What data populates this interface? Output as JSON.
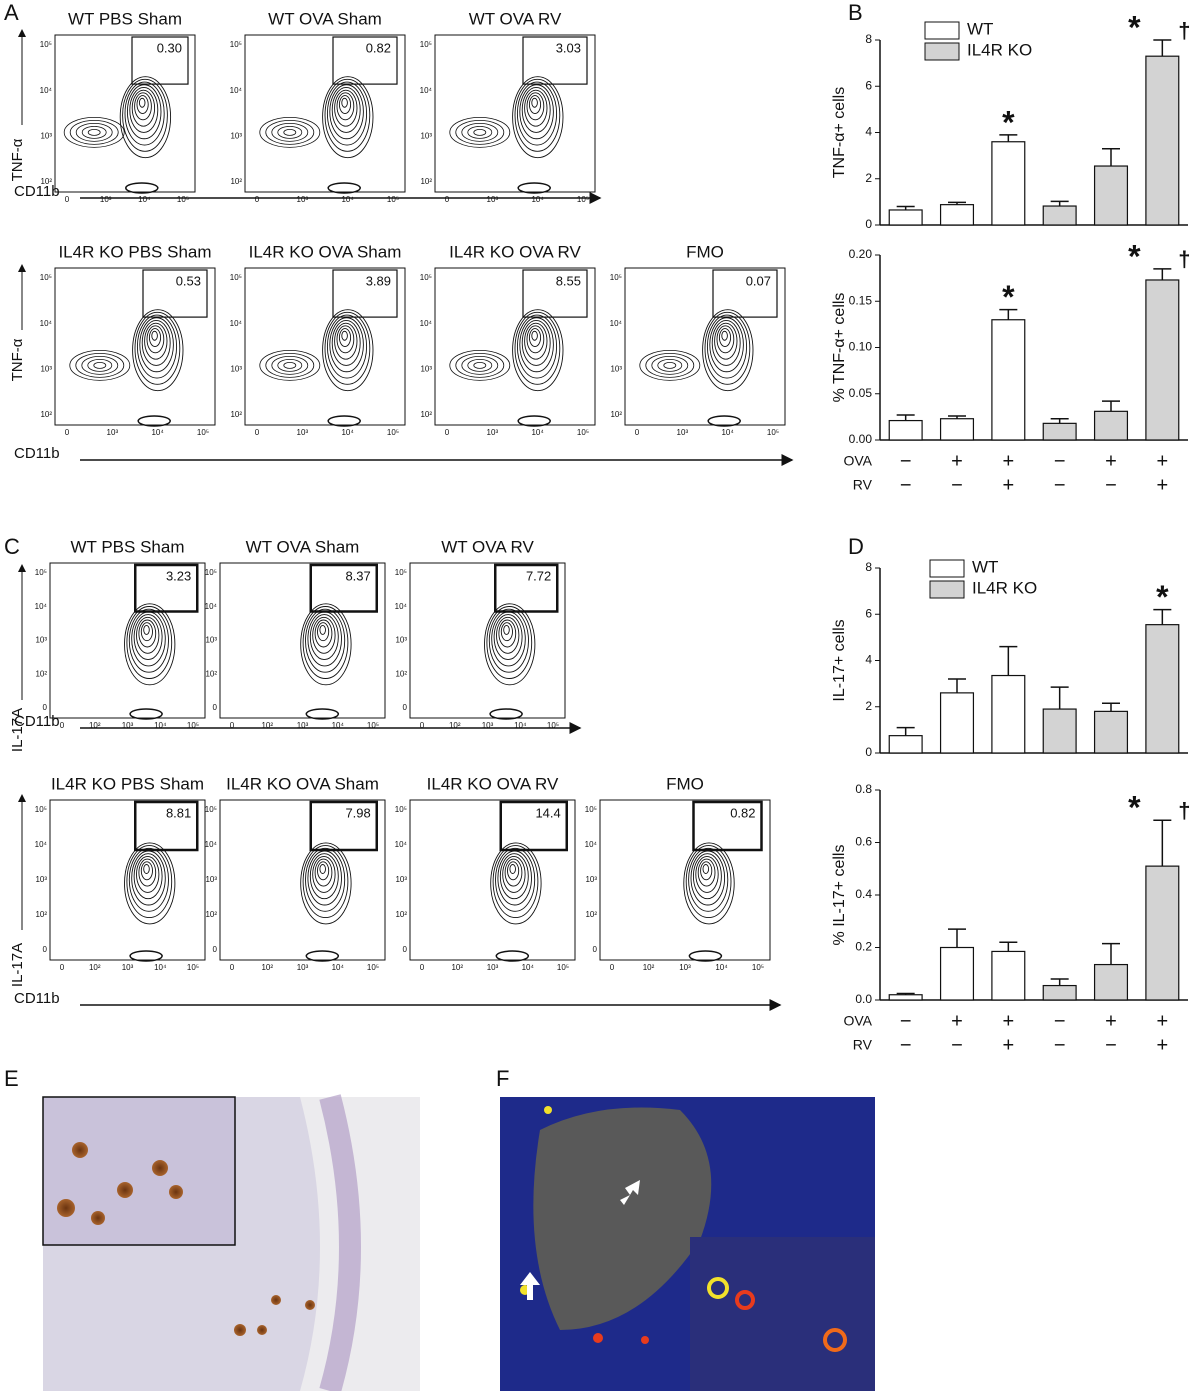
{
  "panel_labels": [
    "A",
    "B",
    "C",
    "D",
    "E",
    "F"
  ],
  "flow_a": {
    "y_label": "TNF-α",
    "x_label": "CD11b",
    "y_ticks": [
      "10⁵",
      "10⁴",
      "10³",
      "10²"
    ],
    "x_ticks": [
      "0",
      "10³",
      "10⁴",
      "10⁵"
    ],
    "plots": [
      {
        "title": "WT PBS Sham",
        "gate": "0.30"
      },
      {
        "title": "WT OVA Sham",
        "gate": "0.82"
      },
      {
        "title": "WT OVA RV",
        "gate": "3.03"
      },
      {
        "title": "IL4R KO PBS Sham",
        "gate": "0.53"
      },
      {
        "title": "IL4R KO OVA Sham",
        "gate": "3.89"
      },
      {
        "title": "IL4R KO OVA RV",
        "gate": "8.55"
      },
      {
        "title": "FMO",
        "gate": "0.07"
      }
    ]
  },
  "flow_c": {
    "y_label": "IL-17A",
    "x_label": "CD11b",
    "y_ticks": [
      "10⁵",
      "10⁴",
      "10³",
      "10²",
      "0"
    ],
    "x_ticks": [
      "0",
      "10²",
      "10³",
      "10⁴",
      "10⁵"
    ],
    "plots": [
      {
        "title": "WT PBS Sham",
        "gate": "3.23"
      },
      {
        "title": "WT OVA Sham",
        "gate": "8.37"
      },
      {
        "title": "WT OVA RV",
        "gate": "7.72"
      },
      {
        "title": "IL4R KO PBS Sham",
        "gate": "8.81"
      },
      {
        "title": "IL4R KO OVA Sham",
        "gate": "7.98"
      },
      {
        "title": "IL4R KO OVA RV",
        "gate": "14.4"
      },
      {
        "title": "FMO",
        "gate": "0.82"
      }
    ]
  },
  "chart_data": [
    {
      "type": "bar",
      "ylabel": "TNF-α+ cells",
      "ylim": [
        0,
        8
      ],
      "yticks": [
        0,
        2,
        4,
        6,
        8
      ],
      "series": [
        {
          "name": "WT",
          "color": "#ffffff",
          "values": [
            0.65,
            0.88,
            3.6,
            null,
            null,
            null
          ],
          "errors": [
            0.15,
            0.1,
            0.3,
            null,
            null,
            null
          ]
        },
        {
          "name": "IL4R KO",
          "color": "#d3d3d3",
          "values": [
            null,
            null,
            null,
            0.82,
            2.55,
            7.3
          ],
          "errors": [
            null,
            null,
            null,
            0.2,
            0.75,
            0.7
          ]
        }
      ],
      "annotations": [
        {
          "index": 2,
          "text": "*"
        },
        {
          "index": 5,
          "text": "*"
        },
        {
          "index": 5,
          "text": "†"
        }
      ]
    },
    {
      "type": "bar",
      "ylabel": "% TNF-α+ cells",
      "ylim": [
        0,
        0.2
      ],
      "yticks": [
        {
          "value": 0,
          "label": "0.00"
        },
        {
          "value": 0.05,
          "label": "0.05"
        },
        {
          "value": 0.1,
          "label": "0.10"
        },
        {
          "value": 0.15,
          "label": "0.15"
        },
        {
          "value": 0.2,
          "label": "0.20"
        }
      ],
      "series": [
        {
          "color": "#ffffff",
          "values": [
            0.021,
            0.023,
            0.13,
            null,
            null,
            null
          ],
          "errors": [
            0.006,
            0.003,
            0.011,
            null,
            null,
            null
          ]
        },
        {
          "color": "#d3d3d3",
          "values": [
            null,
            null,
            null,
            0.018,
            0.031,
            0.173
          ],
          "errors": [
            null,
            null,
            null,
            0.005,
            0.011,
            0.012
          ]
        }
      ],
      "annotations": [
        {
          "index": 2,
          "text": "*"
        },
        {
          "index": 5,
          "text": "*"
        },
        {
          "index": 5,
          "text": "†"
        }
      ],
      "conditions": [
        {
          "label": "OVA",
          "signs": [
            "−",
            "+",
            "+",
            "−",
            "+",
            "+"
          ]
        },
        {
          "label": "RV",
          "signs": [
            "−",
            "−",
            "+",
            "−",
            "−",
            "+"
          ]
        }
      ]
    },
    {
      "type": "bar",
      "ylabel": "IL-17+ cells",
      "ylim": [
        0,
        8
      ],
      "yticks": [
        0,
        2,
        4,
        6,
        8
      ],
      "series": [
        {
          "name": "WT",
          "color": "#ffffff",
          "values": [
            0.75,
            2.6,
            3.35,
            null,
            null,
            null
          ],
          "errors": [
            0.35,
            0.6,
            1.25,
            null,
            null,
            null
          ]
        },
        {
          "name": "IL4R KO",
          "color": "#d3d3d3",
          "values": [
            null,
            null,
            null,
            1.9,
            1.8,
            5.55
          ],
          "errors": [
            null,
            null,
            null,
            0.95,
            0.35,
            0.65
          ]
        }
      ],
      "annotations": [
        {
          "index": 5,
          "text": "*"
        }
      ]
    },
    {
      "type": "bar",
      "ylabel": "% IL-17+ cells",
      "ylim": [
        0,
        0.8
      ],
      "yticks": [
        {
          "value": 0,
          "label": "0.0"
        },
        {
          "value": 0.2,
          "label": "0.2"
        },
        {
          "value": 0.4,
          "label": "0.4"
        },
        {
          "value": 0.6,
          "label": "0.6"
        },
        {
          "value": 0.8,
          "label": "0.8"
        }
      ],
      "series": [
        {
          "color": "#ffffff",
          "values": [
            0.02,
            0.2,
            0.185,
            null,
            null,
            null
          ],
          "errors": [
            0.005,
            0.07,
            0.035,
            null,
            null,
            null
          ]
        },
        {
          "color": "#d3d3d3",
          "values": [
            null,
            null,
            null,
            0.055,
            0.135,
            0.51
          ],
          "errors": [
            null,
            null,
            null,
            0.025,
            0.08,
            0.175
          ]
        }
      ],
      "annotations": [
        {
          "index": 5,
          "text": "*"
        },
        {
          "index": 5,
          "text": "†"
        }
      ],
      "conditions": [
        {
          "label": "OVA",
          "signs": [
            "−",
            "+",
            "+",
            "−",
            "+",
            "+"
          ]
        },
        {
          "label": "RV",
          "signs": [
            "−",
            "−",
            "+",
            "−",
            "−",
            "+"
          ]
        }
      ]
    }
  ]
}
